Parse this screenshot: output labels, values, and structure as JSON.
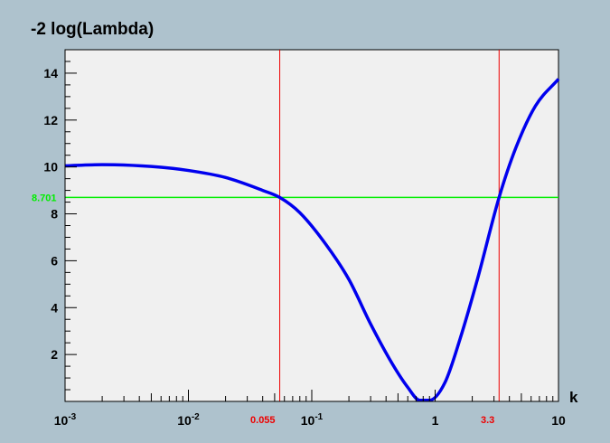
{
  "chart_data": {
    "type": "line",
    "title": "-2 log(Lambda)",
    "xlabel": "k",
    "ylabel": "",
    "xscale": "log",
    "xlim": [
      0.001,
      10
    ],
    "ylim": [
      0,
      15
    ],
    "grid": false,
    "x_major_ticks": [
      {
        "value": 0.001,
        "base": "10",
        "exp": "-3"
      },
      {
        "value": 0.01,
        "base": "10",
        "exp": "-2"
      },
      {
        "value": 0.1,
        "base": "10",
        "exp": "-1"
      },
      {
        "value": 1,
        "base": "1",
        "exp": ""
      },
      {
        "value": 10,
        "base": "10",
        "exp": ""
      }
    ],
    "y_ticks": [
      2,
      4,
      6,
      8,
      10,
      12,
      14
    ],
    "series": [
      {
        "color": "#0000ee",
        "x": [
          0.001,
          0.002,
          0.005,
          0.01,
          0.02,
          0.04,
          0.055,
          0.08,
          0.13,
          0.2,
          0.3,
          0.45,
          0.6,
          0.75,
          0.9,
          1.2,
          1.6,
          2.2,
          3.3,
          4.5,
          6.5,
          10
        ],
        "y": [
          10.05,
          10.1,
          10.02,
          9.85,
          9.55,
          9.0,
          8.7,
          8.05,
          6.7,
          5.2,
          3.3,
          1.6,
          0.6,
          0.05,
          0.05,
          0.8,
          2.7,
          5.2,
          8.7,
          10.8,
          12.6,
          13.75
        ]
      }
    ],
    "horizontal_line": {
      "value": 8.701,
      "label": "8.701",
      "color": "#00ee00"
    },
    "vertical_lines": [
      {
        "value": 0.055,
        "label": "0.055",
        "color": "#ee0000"
      },
      {
        "value": 3.3,
        "label": "3.3",
        "color": "#ee0000"
      }
    ],
    "colors": {
      "canvas_bg": "#aec2cd",
      "plot_bg": "#f0f0f0",
      "axis": "#000000"
    }
  }
}
